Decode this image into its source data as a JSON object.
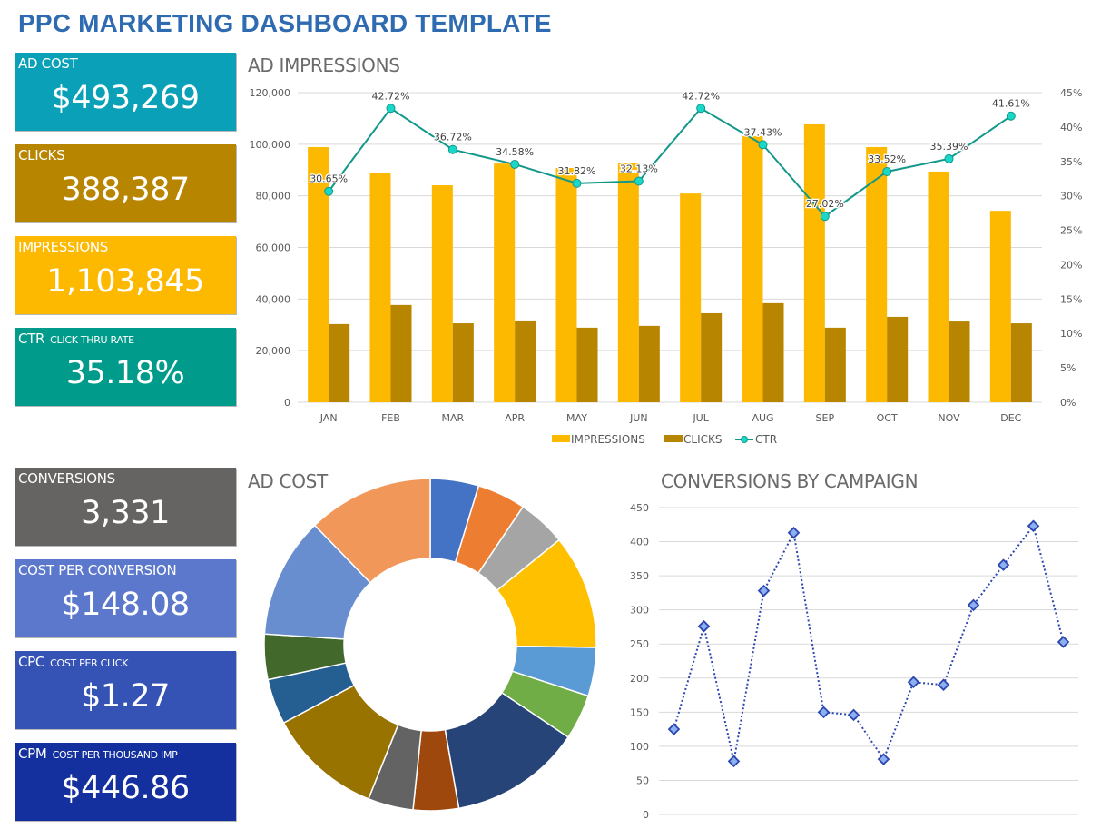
{
  "header": {
    "title": "PPC MARKETING DASHBOARD TEMPLATE"
  },
  "kpis": [
    {
      "label": "AD COST",
      "sublabel": "",
      "value": "$493,269",
      "color": "#0aa0b8"
    },
    {
      "label": "CLICKS",
      "sublabel": "",
      "value": "388,387",
      "color": "#b88500"
    },
    {
      "label": "IMPRESSIONS",
      "sublabel": "",
      "value": "1,103,845",
      "color": "#fdb900"
    },
    {
      "label": "CTR",
      "sublabel": "CLICK THRU RATE",
      "value": "35.18%",
      "color": "#009b8a"
    },
    {
      "label": "CONVERSIONS",
      "sublabel": "",
      "value": "3,331",
      "color": "#666462"
    },
    {
      "label": "COST PER CONVERSION",
      "sublabel": "",
      "value": "$148.08",
      "color": "#5c78cc"
    },
    {
      "label": "CPC",
      "sublabel": "COST PER CLICK",
      "value": "$1.27",
      "color": "#3552b5"
    },
    {
      "label": "CPM",
      "sublabel": "COST PER THOUSAND IMP",
      "value": "$446.86",
      "color": "#14309e"
    }
  ],
  "chart_data": [
    {
      "type": "bar",
      "title": "AD IMPRESSIONS",
      "categories": [
        "JAN",
        "FEB",
        "MAR",
        "APR",
        "MAY",
        "JUN",
        "JUL",
        "AUG",
        "SEP",
        "OCT",
        "NOV",
        "DEC"
      ],
      "series": [
        {
          "name": "IMPRESSIONS",
          "type": "bar",
          "axis": "left",
          "color": "#fdb900",
          "values": [
            98900,
            88700,
            84100,
            92500,
            90800,
            92900,
            80900,
            103100,
            107700,
            98900,
            89400,
            74200
          ]
        },
        {
          "name": "CLICKS",
          "type": "bar",
          "axis": "left",
          "color": "#b88500",
          "values": [
            30300,
            37700,
            30600,
            31700,
            28900,
            29600,
            34500,
            38400,
            28900,
            33100,
            31300,
            30600
          ]
        },
        {
          "name": "CTR",
          "type": "line",
          "axis": "right",
          "color": "#12988a",
          "marker_color": "#1ad8c8",
          "values": [
            30.65,
            42.72,
            36.72,
            34.58,
            31.82,
            32.13,
            42.72,
            37.43,
            27.02,
            33.52,
            35.39,
            41.61
          ],
          "labels": [
            "30.65%",
            "42.72%",
            "36.72%",
            "34.58%",
            "31.82%",
            "32.13%",
            "42.72%",
            "37.43%",
            "27.02%",
            "33.52%",
            "35.39%",
            "41.61%"
          ]
        }
      ],
      "ylim": [
        0,
        120000
      ],
      "yticks": [
        "0",
        "20,000",
        "40,000",
        "60,000",
        "80,000",
        "100,000",
        "120,000"
      ],
      "y2lim": [
        0,
        45
      ],
      "y2ticks": [
        "0%",
        "5%",
        "10%",
        "15%",
        "20%",
        "25%",
        "30%",
        "35%",
        "40%",
        "45%"
      ],
      "grid": true,
      "legend": "bottom"
    },
    {
      "type": "pie",
      "variant": "donut",
      "title": "AD COST",
      "values": [
        4.7,
        4.7,
        4.7,
        11.1,
        4.7,
        4.4,
        12.8,
        4.4,
        4.4,
        11.1,
        4.4,
        4.4,
        11.7,
        12.2
      ],
      "colors": [
        "#4472c4",
        "#ed7d31",
        "#a5a5a5",
        "#ffc000",
        "#5b9bd5",
        "#70ad47",
        "#264478",
        "#9e480e",
        "#636363",
        "#997300",
        "#255e91",
        "#43682b",
        "#698ed0",
        "#f1975a"
      ],
      "legend": "none"
    },
    {
      "type": "line",
      "title": "CONVERSIONS BY CAMPAIGN",
      "values": [
        125,
        276,
        78,
        328,
        413,
        150,
        146,
        81,
        194,
        190,
        307,
        366,
        423,
        253
      ],
      "ylim": [
        0,
        450
      ],
      "yticks": [
        "0",
        "50",
        "100",
        "150",
        "200",
        "250",
        "300",
        "350",
        "400",
        "450"
      ],
      "color": "#2a46b0",
      "marker_fill": "#8fb0f0",
      "grid": true,
      "legend": "none"
    }
  ]
}
